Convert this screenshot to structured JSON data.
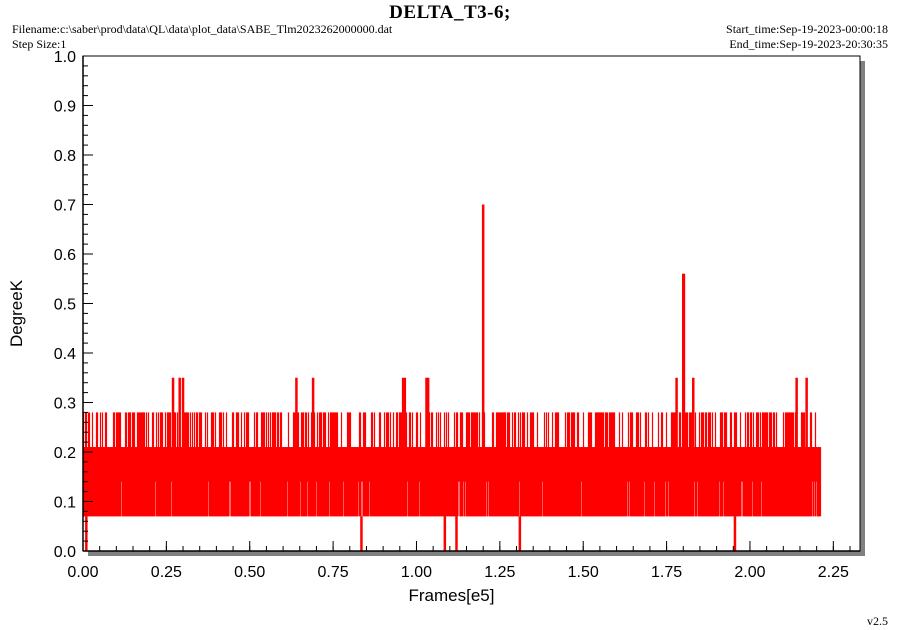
{
  "header": {
    "title": "DELTA_T3-6;",
    "filename": "Filename:c:\\saber\\prod\\data\\QL\\data\\plot_data\\SABE_Tlm2023262000000.dat",
    "step_size": "Step Size:1",
    "start_time": "Start_time:Sep-19-2023-00:00:18",
    "end_time": "End_time:Sep-19-2023-20:30:35",
    "version": "v2.5"
  },
  "colors": {
    "series": "#ff0000",
    "frame_shadow": "#808080",
    "axis": "#000000"
  },
  "chart_data": {
    "type": "line",
    "title": "DELTA_T3-6;",
    "xlabel": "Frames[e5]",
    "ylabel": "DegreeK",
    "xlim": [
      0.0,
      2.33
    ],
    "ylim": [
      0.0,
      1.0
    ],
    "x_ticks": [
      "0.00",
      "0.25",
      "0.50",
      "0.75",
      "1.00",
      "1.25",
      "1.50",
      "1.75",
      "2.00",
      "2.25"
    ],
    "y_ticks": [
      "0.0",
      "0.1",
      "0.2",
      "0.3",
      "0.4",
      "0.5",
      "0.6",
      "0.7",
      "0.8",
      "0.9",
      "1.0"
    ],
    "grid": false,
    "legend": "none",
    "series": [
      {
        "x_range": [
          0.0,
          2.21
        ],
        "base_band": [
          0.07,
          0.21
        ],
        "upper_band": [
          0.07,
          0.28
        ],
        "levels": [
          0.0,
          0.07,
          0.14,
          0.21,
          0.28,
          0.35,
          0.56,
          0.7
        ],
        "spikes": [
          {
            "x": 0.01,
            "y": 0.0
          },
          {
            "x": 0.27,
            "y": 0.35
          },
          {
            "x": 0.29,
            "y": 0.35
          },
          {
            "x": 0.3,
            "y": 0.35
          },
          {
            "x": 0.64,
            "y": 0.35
          },
          {
            "x": 0.69,
            "y": 0.35
          },
          {
            "x": 0.835,
            "y": 0.0
          },
          {
            "x": 0.96,
            "y": 0.35
          },
          {
            "x": 0.965,
            "y": 0.35
          },
          {
            "x": 1.03,
            "y": 0.35
          },
          {
            "x": 1.035,
            "y": 0.35
          },
          {
            "x": 1.085,
            "y": 0.0
          },
          {
            "x": 1.12,
            "y": 0.0
          },
          {
            "x": 1.2,
            "y": 0.7
          },
          {
            "x": 1.31,
            "y": 0.0
          },
          {
            "x": 1.78,
            "y": 0.35
          },
          {
            "x": 1.8,
            "y": 0.56
          },
          {
            "x": 1.802,
            "y": 0.56
          },
          {
            "x": 1.83,
            "y": 0.35
          },
          {
            "x": 1.955,
            "y": 0.0
          },
          {
            "x": 2.14,
            "y": 0.35
          },
          {
            "x": 2.17,
            "y": 0.35
          }
        ]
      }
    ]
  }
}
